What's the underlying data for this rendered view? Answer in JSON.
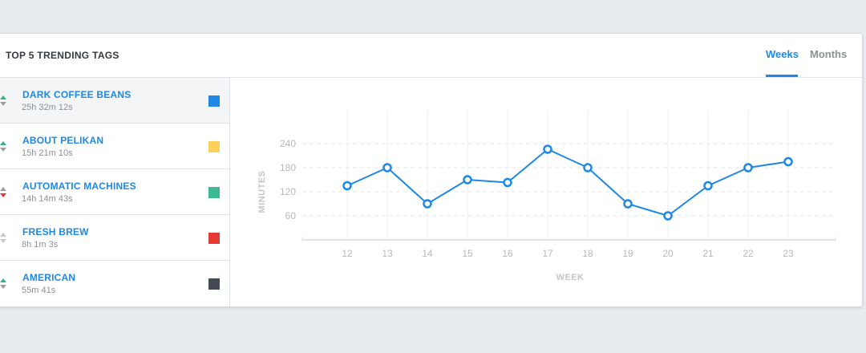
{
  "header": {
    "title": "TOP 5 TRENDING TAGS",
    "tabs": [
      {
        "label": "Weeks",
        "active": true
      },
      {
        "label": "Months",
        "active": false
      }
    ]
  },
  "tags": [
    {
      "name": "DARK COFFEE BEANS",
      "time": "25h 32m 12s",
      "color": "#1e88e5",
      "trend": "up-green",
      "active": true
    },
    {
      "name": "ABOUT PELIKAN",
      "time": "15h 21m 10s",
      "color": "#fdd05c",
      "trend": "up-green",
      "active": false
    },
    {
      "name": "AUTOMATIC MACHINES",
      "time": "14h 14m 43s",
      "color": "#3dba94",
      "trend": "down-red",
      "active": false
    },
    {
      "name": "FRESH BREW",
      "time": "8h 1m 3s",
      "color": "#e53935",
      "trend": "neutral",
      "active": false
    },
    {
      "name": "AMERICAN",
      "time": "55m 41s",
      "color": "#434a54",
      "trend": "up-green",
      "active": false
    }
  ],
  "chart_data": {
    "type": "line",
    "xlabel": "WEEK",
    "ylabel": "MINUTES",
    "x": [
      12,
      13,
      14,
      15,
      16,
      17,
      18,
      19,
      20,
      21,
      22,
      23
    ],
    "series": [
      {
        "values": [
          135,
          180,
          90,
          150,
          143,
          226,
          180,
          90,
          60,
          135,
          180,
          195
        ],
        "color": "#1e88e5"
      }
    ],
    "yticks": [
      60,
      120,
      180,
      240
    ],
    "ylim": [
      0,
      240
    ],
    "grid": true
  }
}
